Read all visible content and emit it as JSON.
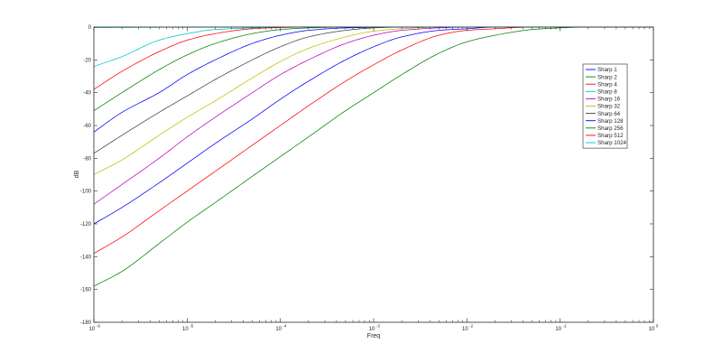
{
  "chart_data": {
    "type": "line",
    "title": "",
    "xlabel": "Freq",
    "ylabel": "dB",
    "xscale": "log",
    "xlim": [
      1e-06,
      1
    ],
    "ylim": [
      -180,
      0
    ],
    "yticks": [
      0,
      -20,
      -40,
      -60,
      -80,
      -100,
      -120,
      -140,
      -160,
      -180
    ],
    "xticks": [
      {
        "base": "10",
        "exp": "-6"
      },
      {
        "base": "10",
        "exp": "-5"
      },
      {
        "base": "10",
        "exp": "-4"
      },
      {
        "base": "10",
        "exp": "-3"
      },
      {
        "base": "10",
        "exp": "-2"
      },
      {
        "base": "10",
        "exp": "-1"
      },
      {
        "base": "10",
        "exp": "0"
      }
    ],
    "grid": false,
    "legend_position": "top-right",
    "x": [
      1e-06,
      2e-06,
      5e-06,
      1e-05,
      2e-05,
      5e-05,
      0.0001,
      0.0002,
      0.0005,
      0.001,
      0.002,
      0.005,
      0.01,
      0.02,
      0.05,
      0.1,
      0.2,
      0.5,
      1
    ],
    "series": [
      {
        "name": "Sharp 1",
        "color": "#0000ff",
        "values": [
          -64,
          -52,
          -40,
          -29,
          -20,
          -10,
          -5,
          -2,
          -0.5,
          -0.2,
          0,
          0,
          0,
          0,
          0,
          0,
          0,
          0,
          0
        ]
      },
      {
        "name": "Sharp 2",
        "color": "#008000",
        "values": [
          -51,
          -40,
          -26,
          -17,
          -10,
          -4,
          -1.5,
          -0.5,
          0,
          0,
          0,
          0,
          0,
          0,
          0,
          0,
          0,
          0,
          0
        ]
      },
      {
        "name": "Sharp 4",
        "color": "#ff0000",
        "values": [
          -38,
          -27,
          -15,
          -8,
          -4,
          -1,
          -0.3,
          0,
          0,
          0,
          0,
          0,
          0,
          0,
          0,
          0,
          0,
          0,
          0
        ]
      },
      {
        "name": "Sharp 8",
        "color": "#00bfbf",
        "values": [
          -24,
          -18,
          -8,
          -4,
          -1.5,
          -0.5,
          0,
          0,
          0,
          0,
          0,
          0,
          0,
          0,
          0,
          0,
          0,
          0,
          0
        ]
      },
      {
        "name": "Sharp 16",
        "color": "#bf00bf",
        "values": [
          -108,
          -96,
          -80,
          -67,
          -55,
          -40,
          -29,
          -20,
          -10,
          -5,
          -2,
          -0.5,
          0,
          0,
          0,
          0,
          0,
          0,
          0
        ]
      },
      {
        "name": "Sharp 32",
        "color": "#bfbf00",
        "values": [
          -90,
          -81,
          -66,
          -55,
          -45,
          -31,
          -21,
          -13,
          -6,
          -2.5,
          -1,
          0,
          0,
          0,
          0,
          0,
          0,
          0,
          0
        ]
      },
      {
        "name": "Sharp 64",
        "color": "#404040",
        "values": [
          -77,
          -66,
          -52,
          -42,
          -32,
          -20,
          -12,
          -6,
          -2,
          -0.5,
          0,
          0,
          0,
          0,
          0,
          0,
          0,
          0,
          0
        ]
      },
      {
        "name": "Sharp 128",
        "color": "#0000ff",
        "values": [
          -120,
          -110,
          -95,
          -83,
          -71,
          -56,
          -44,
          -33,
          -20,
          -12,
          -6,
          -2,
          -1,
          0,
          0,
          0,
          0,
          0,
          0
        ]
      },
      {
        "name": "Sharp 256",
        "color": "#008000",
        "values": [
          -158,
          -149,
          -132,
          -119,
          -107,
          -91,
          -79,
          -67,
          -51,
          -40,
          -29,
          -16,
          -9,
          -5,
          -1.5,
          -0.5,
          0,
          0,
          0
        ]
      },
      {
        "name": "Sharp 512",
        "color": "#ff0000",
        "values": [
          -138,
          -128,
          -112,
          -100,
          -88,
          -72,
          -60,
          -48,
          -33,
          -23,
          -14,
          -5,
          -2,
          -1,
          0,
          0,
          0,
          0,
          0
        ]
      },
      {
        "name": "Sharp 1024",
        "color": "#00bfbf",
        "values": [
          -0.3,
          -0.2,
          -0.1,
          0,
          0,
          0,
          0,
          0,
          0,
          0,
          0,
          0,
          0,
          0,
          0,
          0,
          0,
          0,
          0
        ]
      }
    ]
  }
}
